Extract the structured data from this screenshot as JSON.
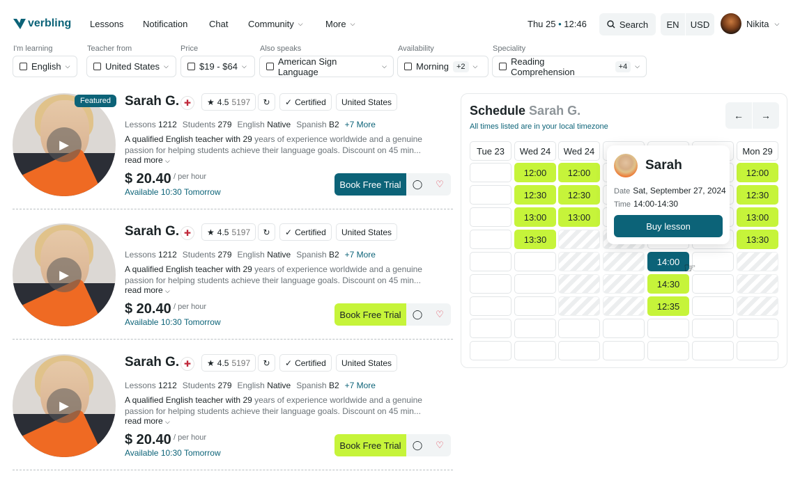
{
  "brand": {
    "name": "verbling",
    "color": "#0c6378",
    "accent": "#c6f43a"
  },
  "nav": [
    {
      "label": "Lessons"
    },
    {
      "label": "Notification"
    },
    {
      "label": "Chat"
    },
    {
      "label": "Community"
    },
    {
      "label": "More"
    }
  ],
  "header": {
    "day": "Thu 25",
    "time": "12:46",
    "search_label": "Search",
    "language": "EN",
    "currency": "USD",
    "user_name": "Nikita"
  },
  "filters": [
    {
      "label": "I'm learning",
      "value": "English"
    },
    {
      "label": "Teacher from",
      "value": "United States"
    },
    {
      "label": "Price",
      "value": "$19 - $64"
    },
    {
      "label": "Also speaks",
      "value": "American Sign Language"
    },
    {
      "label": "Availability",
      "value": "Morning",
      "extra": "+2"
    },
    {
      "label": "Speciality",
      "value": "Reading Comprehension",
      "extra": "+4"
    }
  ],
  "teachers": [
    {
      "featured": "Featured",
      "name": "Sarah G.",
      "rating": "4.5",
      "reviews": "5197",
      "certified": "Certified",
      "country": "United States",
      "lessons_label": "Lessons",
      "lessons": "1212",
      "students_label": "Students",
      "students": "279",
      "lang1": "English",
      "lang1_level": "Native",
      "lang2": "Spanish",
      "lang2_level": "B2",
      "more": "+7 More",
      "desc_a": "A qualified English teacher with ",
      "years": "29",
      "desc_b": " years of experience worldwide and a genuine passion for helping students achieve their language goals. Discount on 45 min...",
      "read_more": "read more",
      "price": "$ 20.40",
      "per": "/ per hour",
      "available": "Available 10:30 Tomorrow",
      "book": "Book Free Trial"
    },
    {
      "name": "Sarah G.",
      "rating": "4.5",
      "reviews": "5197",
      "certified": "Certified",
      "country": "United States",
      "lessons_label": "Lessons",
      "lessons": "1212",
      "students_label": "Students",
      "students": "279",
      "lang1": "English",
      "lang1_level": "Native",
      "lang2": "Spanish",
      "lang2_level": "B2",
      "more": "+7 More",
      "desc_a": "A qualified English teacher with ",
      "years": "29",
      "desc_b": " years of experience worldwide and a genuine passion for helping students achieve their language goals. Discount on 45 min...",
      "read_more": "read more",
      "price": "$ 20.40",
      "per": "/ per hour",
      "available": "Available 10:30 Tomorrow",
      "book": "Book Free Trial"
    },
    {
      "name": "Sarah G.",
      "rating": "4.5",
      "reviews": "5197",
      "certified": "Certified",
      "country": "United States",
      "lessons_label": "Lessons",
      "lessons": "1212",
      "students_label": "Students",
      "students": "279",
      "lang1": "English",
      "lang1_level": "Native",
      "lang2": "Spanish",
      "lang2_level": "B2",
      "more": "+7 More",
      "desc_a": "A qualified English teacher with ",
      "years": "29",
      "desc_b": " years of experience worldwide and a genuine passion for helping students achieve their language goals. Discount on 45 min...",
      "read_more": "read more",
      "price": "$ 20.40",
      "per": "/ per hour",
      "available": "Available 10:30 Tomorrow",
      "book": "Book Free Trial"
    }
  ],
  "schedule": {
    "title": "Schedule",
    "teacher": "Sarah G.",
    "subtitle": "All times listed are in your local timezone",
    "days": [
      "Tue 23",
      "Wed 24",
      "Wed 24",
      "",
      "",
      "",
      "Mon 29"
    ],
    "columns": [
      {
        "slots": [
          "",
          "",
          "",
          "",
          "",
          "",
          "",
          "",
          ""
        ]
      },
      {
        "slots": [
          "12:00",
          "12:30",
          "13:00",
          "13:30",
          "",
          "",
          "",
          "",
          ""
        ]
      },
      {
        "slots": [
          "12:00",
          "12:30",
          "13:00",
          "#",
          "#",
          "#",
          "#",
          "",
          ""
        ]
      },
      {
        "slots": [
          "",
          "",
          "",
          "#",
          "#",
          "#",
          "#",
          "",
          ""
        ]
      },
      {
        "slots": [
          "",
          "",
          "",
          "",
          "14:00",
          "14:30",
          "12:35",
          "",
          ""
        ]
      },
      {
        "slots": [
          "",
          "",
          "",
          "",
          "",
          "",
          "",
          "",
          ""
        ]
      },
      {
        "slots": [
          "12:00",
          "12:30",
          "13:00",
          "13:30",
          "#",
          "#",
          "#",
          "",
          ""
        ]
      }
    ],
    "selected": "14:00",
    "popup": {
      "name": "Sarah",
      "date_label": "Date",
      "date": "Sat, September 27, 2024",
      "time_label": "Time",
      "time": "14:00-14:30",
      "button": "Buy lesson"
    }
  }
}
